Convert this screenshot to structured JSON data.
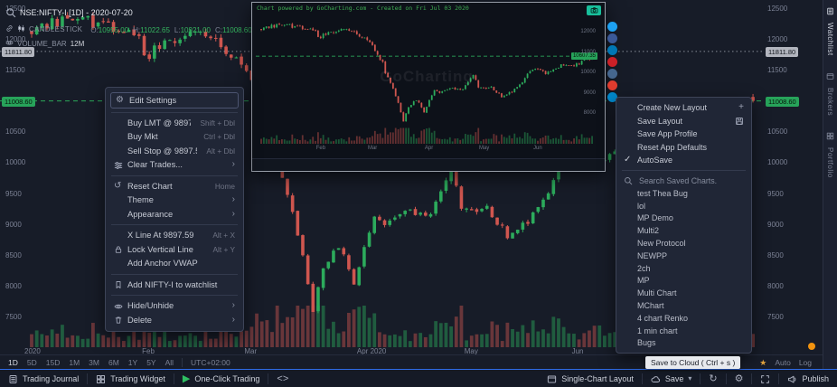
{
  "symbol_bar": {
    "title": "NSE:NIFTY-I [1D] - 2020-07-20",
    "series_type": "CANDLESTICK",
    "ohlc": [
      {
        "label": "O:",
        "value": "10955.00",
        "color": "#35b45f"
      },
      {
        "label": "H:",
        "value": "11022.65",
        "color": "#35b45f"
      },
      {
        "label": "L:",
        "value": "10921.00",
        "color": "#35b45f"
      },
      {
        "label": "C:",
        "value": "11008.60",
        "color": "#35b45f"
      }
    ],
    "indicator": "VOLUME_BAR",
    "indicator_param": "12M"
  },
  "chart_data": {
    "type": "candlestick",
    "symbol": "NSE:NIFTY-I",
    "interval": "1D",
    "visible_range": "Jan 2020 - Jul 2020",
    "up_color": "#2cab5c",
    "down_color": "#cf564f",
    "y_ticks": [
      12500,
      12000,
      11500,
      10500,
      10000,
      9500,
      9000,
      8500,
      8000,
      7500
    ],
    "price_lines": [
      {
        "text": "11811.80",
        "value": 11811.8,
        "color": "#9aa0aa",
        "dash": "1.5,3",
        "label_bg": "#b2b5be",
        "label_fg": "#14181f"
      },
      {
        "text": "11008.60",
        "value": 11008.6,
        "color": "#2fbf62",
        "dash": "5,4",
        "label_bg": "#27a35a",
        "label_fg": "#06130a"
      }
    ],
    "month_labels": [
      {
        "label": "2020",
        "day": 0
      },
      {
        "label": "Feb",
        "day": 23
      },
      {
        "label": "Mar",
        "day": 43
      },
      {
        "label": "Apr 2020",
        "day": 65
      },
      {
        "label": "May",
        "day": 86
      },
      {
        "label": "Jun",
        "day": 107
      }
    ],
    "days": 142,
    "keypoints": [
      [
        0,
        12182
      ],
      [
        5,
        12280
      ],
      [
        9,
        12362
      ],
      [
        14,
        12224
      ],
      [
        18,
        12100
      ],
      [
        21,
        12035
      ],
      [
        22,
        11661
      ],
      [
        26,
        11980
      ],
      [
        30,
        12089
      ],
      [
        34,
        12080
      ],
      [
        38,
        11829
      ],
      [
        40,
        11633
      ],
      [
        43,
        11303
      ],
      [
        47,
        10458
      ],
      [
        48,
        9955
      ],
      [
        51,
        9197
      ],
      [
        53,
        8469
      ],
      [
        55,
        7610
      ],
      [
        57,
        8317
      ],
      [
        60,
        8660
      ],
      [
        63,
        8084
      ],
      [
        67,
        9111
      ],
      [
        69,
        8993
      ],
      [
        73,
        9266
      ],
      [
        78,
        9154
      ],
      [
        82,
        9860
      ],
      [
        84,
        9293
      ],
      [
        89,
        9270
      ],
      [
        93,
        8823
      ],
      [
        97,
        9039
      ],
      [
        101,
        9580
      ],
      [
        104,
        10061
      ],
      [
        107,
        10142
      ],
      [
        110,
        9972
      ],
      [
        114,
        10244
      ],
      [
        117,
        10383
      ],
      [
        121,
        10302
      ],
      [
        125,
        10607
      ],
      [
        129,
        10768
      ],
      [
        133,
        10901
      ],
      [
        138,
        10955
      ],
      [
        141,
        11008.6
      ]
    ]
  },
  "context_menu": {
    "groups": [
      {
        "items": [
          {
            "icon": "gear",
            "label": "Edit Settings",
            "boxed": true
          }
        ]
      },
      {
        "items": [
          {
            "label": "Buy LMT @ 9897.59",
            "shortcut": "Shift + Dbl"
          },
          {
            "label": "Buy Mkt",
            "shortcut": "Ctrl + Dbl"
          },
          {
            "label": "Sell Stop @ 9897.59",
            "shortcut": "Alt + Dbl"
          },
          {
            "icon": "sliders",
            "label": "Clear Trades...",
            "chevron": true
          }
        ]
      },
      {
        "items": [
          {
            "icon": "reset",
            "label": "Reset Chart",
            "shortcut": "Home"
          },
          {
            "label": "Theme",
            "chevron": true
          },
          {
            "label": "Appearance",
            "chevron": true
          }
        ]
      },
      {
        "items": [
          {
            "label": "X Line At 9897.59",
            "shortcut": "Alt + X"
          },
          {
            "icon": "lock",
            "label": "Lock Vertical Line",
            "shortcut": "Alt + Y"
          },
          {
            "label": "Add Anchor VWAP"
          }
        ]
      },
      {
        "items": [
          {
            "icon": "bookmark",
            "label": "Add NIFTY-I to watchlist"
          }
        ]
      },
      {
        "items": [
          {
            "icon": "eye",
            "label": "Hide/Unhide",
            "chevron": true
          },
          {
            "icon": "trash",
            "label": "Delete",
            "chevron": true
          }
        ]
      }
    ]
  },
  "popup": {
    "header": "Chart powered by GoCharting.com - Created on Fri Jul 03 2020",
    "watermark": "GoCharting",
    "price_tag": "10607.35",
    "y_ticks": [
      12000,
      11000,
      10000,
      9000,
      8000
    ],
    "months": [
      {
        "label": "Feb",
        "day": 23
      },
      {
        "label": "Mar",
        "day": 43
      },
      {
        "label": "Apr",
        "day": 65
      },
      {
        "label": "May",
        "day": 86
      },
      {
        "label": "Jun",
        "day": 107
      }
    ],
    "share_buttons": [
      {
        "name": "twitter",
        "color": "#1da1f2"
      },
      {
        "name": "facebook",
        "color": "#3b5998"
      },
      {
        "name": "linkedin",
        "color": "#0077b5"
      },
      {
        "name": "pinterest",
        "color": "#cb2027"
      },
      {
        "name": "vk",
        "color": "#45668e"
      },
      {
        "name": "reddit",
        "color": "#e03c2f"
      },
      {
        "name": "telegram",
        "color": "#0088cc"
      }
    ]
  },
  "layout_menu": {
    "items": [
      {
        "label": "Create New Layout",
        "right_icon": "plus"
      },
      {
        "label": "Save Layout",
        "right_icon": "floppy"
      },
      {
        "label": "Save App Profile"
      },
      {
        "label": "Reset App Defaults"
      },
      {
        "label": "AutoSave",
        "left_icon": "check"
      }
    ],
    "search_placeholder": "Search Saved Charts.",
    "saved_charts": [
      "test Thea Bug",
      "lol",
      "MP Demo",
      "Multi2",
      "New Protocol",
      "NEWPP",
      "2ch",
      "MP",
      "Multi Chart",
      "MChart",
      "4 chart Renko",
      "1 min chart",
      "Bugs"
    ]
  },
  "timeframe_bar": {
    "ranges": [
      "1D",
      "5D",
      "15D",
      "1M",
      "3M",
      "6M",
      "1Y",
      "5Y",
      "All"
    ],
    "timezone": "UTC+02:00",
    "auto_label": "Auto",
    "log_label": "Log"
  },
  "status_bar": {
    "left": [
      {
        "icon": "journal",
        "label": "Trading Journal"
      },
      {
        "icon": "grid4",
        "label": "Trading Widget"
      },
      {
        "icon": "play",
        "label": "One-Click Trading",
        "icon_color": "#2fbf62"
      },
      {
        "icon": "code",
        "label": ""
      }
    ],
    "right": [
      {
        "icon": "window",
        "label": "Single-Chart Layout"
      },
      {
        "icon": "cloud",
        "label": "Save",
        "caret": true
      },
      {
        "icon": "refresh",
        "label": ""
      },
      {
        "icon": "gear",
        "label": ""
      },
      {
        "icon": "expand",
        "label": ""
      },
      {
        "icon": "megaphone",
        "label": "Publish"
      }
    ]
  },
  "right_sidebar": {
    "tabs": [
      {
        "label": "Watchlist",
        "icon": "journal",
        "active": true
      },
      {
        "label": "Brokers",
        "icon": "window"
      },
      {
        "label": "Portfolio",
        "icon": "grid4"
      }
    ]
  },
  "tooltip": "Save to Cloud ( Ctrl + s )"
}
